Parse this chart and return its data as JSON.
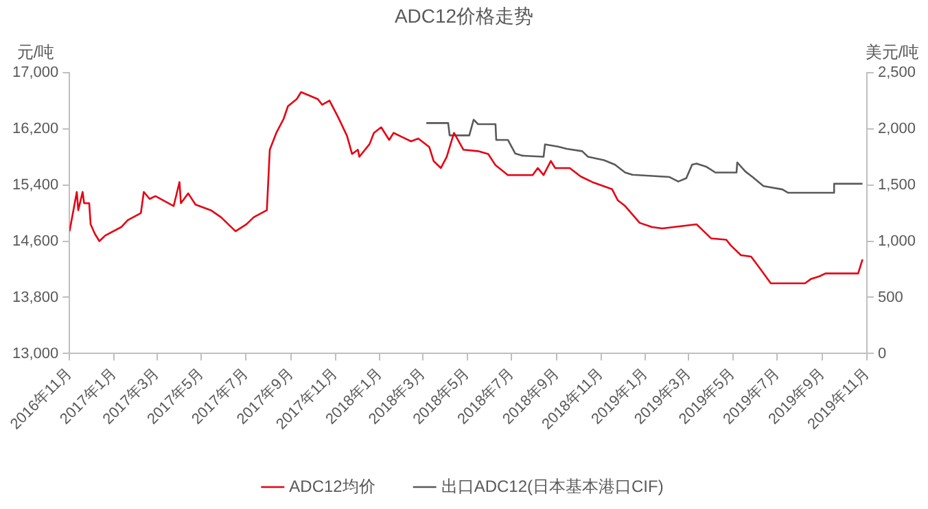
{
  "chart_data": {
    "type": "line",
    "title": "ADC12价格走势",
    "ylabel": "元/吨",
    "y2label": "美元/吨",
    "legend": "bottom",
    "grid": false,
    "xlim": [
      "2016-11-01",
      "2019-11-01"
    ],
    "xticks": [
      {
        "value": "2016-11",
        "label": "2016年11月"
      },
      {
        "value": "2017-01",
        "label": "2017年1月"
      },
      {
        "value": "2017-03",
        "label": "2017年3月"
      },
      {
        "value": "2017-05",
        "label": "2017年5月"
      },
      {
        "value": "2017-07",
        "label": "2017年7月"
      },
      {
        "value": "2017-09",
        "label": "2017年9月"
      },
      {
        "value": "2017-11",
        "label": "2017年11月"
      },
      {
        "value": "2018-01",
        "label": "2018年1月"
      },
      {
        "value": "2018-03",
        "label": "2018年3月"
      },
      {
        "value": "2018-05",
        "label": "2018年5月"
      },
      {
        "value": "2018-07",
        "label": "2018年7月"
      },
      {
        "value": "2018-09",
        "label": "2018年9月"
      },
      {
        "value": "2018-11",
        "label": "2018年11月"
      },
      {
        "value": "2019-01",
        "label": "2019年1月"
      },
      {
        "value": "2019-03",
        "label": "2019年3月"
      },
      {
        "value": "2019-05",
        "label": "2019年5月"
      },
      {
        "value": "2019-07",
        "label": "2019年7月"
      },
      {
        "value": "2019-09",
        "label": "2019年9月"
      },
      {
        "value": "2019-11",
        "label": "2019年11月"
      }
    ],
    "ylim": [
      13000,
      17000
    ],
    "yticks": [
      {
        "value": 13000,
        "label": "13,000"
      },
      {
        "value": 13800,
        "label": "13,800"
      },
      {
        "value": 14600,
        "label": "14,600"
      },
      {
        "value": 15400,
        "label": "15,400"
      },
      {
        "value": 16200,
        "label": "16,200"
      },
      {
        "value": 17000,
        "label": "17,000"
      }
    ],
    "y2lim": [
      0,
      2500
    ],
    "y2ticks": [
      0,
      500,
      {
        "value": 1000,
        "label": "1,000"
      },
      {
        "value": 1500,
        "label": "1,500"
      },
      {
        "value": 2000,
        "label": "2,000"
      },
      {
        "value": 2500,
        "label": "2,500"
      }
    ],
    "series": [
      {
        "name": "ADC12均价",
        "color": "#e60012",
        "x": [
          "2016-11-01",
          "2016-11-11",
          "2016-11-13",
          "2016-11-19",
          "2016-11-21",
          "2016-11-28",
          "2016-11-30",
          "2016-12-06",
          "2016-12-12",
          "2016-12-20",
          "2017-01-11",
          "2017-01-20",
          "2017-02-07",
          "2017-02-11",
          "2017-02-19",
          "2017-02-27",
          "2017-03-24",
          "2017-04-01",
          "2017-04-03",
          "2017-04-13",
          "2017-04-23",
          "2017-05-14",
          "2017-05-28",
          "2017-06-17",
          "2017-07-02",
          "2017-07-12",
          "2017-07-30",
          "2017-08-03",
          "2017-08-12",
          "2017-08-22",
          "2017-08-28",
          "2017-09-09",
          "2017-09-15",
          "2017-10-08",
          "2017-10-14",
          "2017-10-24",
          "2017-11-05",
          "2017-11-17",
          "2017-11-24",
          "2017-12-02",
          "2017-12-04",
          "2017-12-18",
          "2017-12-24",
          "2018-01-03",
          "2018-01-14",
          "2018-01-20",
          "2018-02-01",
          "2018-02-13",
          "2018-02-23",
          "2018-03-10",
          "2018-03-16",
          "2018-03-26",
          "2018-04-03",
          "2018-04-13",
          "2018-04-26",
          "2018-05-16",
          "2018-05-30",
          "2018-06-09",
          "2018-06-26",
          "2018-07-30",
          "2018-08-06",
          "2018-08-14",
          "2018-08-24",
          "2018-08-30",
          "2018-09-19",
          "2018-10-04",
          "2018-10-20",
          "2018-11-16",
          "2018-11-24",
          "2018-12-04",
          "2018-12-14",
          "2018-12-24",
          "2019-01-10",
          "2019-01-24",
          "2019-03-12",
          "2019-03-22",
          "2019-04-01",
          "2019-04-22",
          "2019-04-28",
          "2019-05-12",
          "2019-05-26",
          "2019-06-08",
          "2019-06-22",
          "2019-08-08",
          "2019-08-16",
          "2019-08-28",
          "2019-09-05",
          "2019-10-20",
          "2019-10-26"
        ],
        "values": [
          14740,
          15300,
          15040,
          15300,
          15140,
          15140,
          14840,
          14700,
          14600,
          14680,
          14800,
          14900,
          15000,
          15300,
          15200,
          15240,
          15100,
          15440,
          15140,
          15280,
          15120,
          15040,
          14940,
          14740,
          14840,
          14940,
          15040,
          15900,
          16140,
          16340,
          16520,
          16620,
          16720,
          16620,
          16540,
          16600,
          16360,
          16100,
          15840,
          15900,
          15800,
          15980,
          16140,
          16220,
          16040,
          16140,
          16080,
          16020,
          16060,
          15940,
          15740,
          15640,
          15800,
          16140,
          15900,
          15880,
          15840,
          15680,
          15540,
          15540,
          15640,
          15540,
          15740,
          15640,
          15640,
          15520,
          15440,
          15340,
          15180,
          15100,
          14980,
          14860,
          14800,
          14780,
          14840,
          14740,
          14640,
          14620,
          14540,
          14400,
          14380,
          14200,
          14000,
          14000,
          14060,
          14100,
          14140,
          14140,
          14340
        ]
      },
      {
        "name": "出口ADC12(日本基本港口CIF)",
        "color": "#595959",
        "axis": "y2",
        "x": [
          "2018-03-06",
          "2018-04-05",
          "2018-04-07",
          "2018-05-04",
          "2018-05-10",
          "2018-05-16",
          "2018-06-09",
          "2018-06-10",
          "2018-06-26",
          "2018-07-06",
          "2018-07-16",
          "2018-08-14",
          "2018-08-16",
          "2018-09-03",
          "2018-09-15",
          "2018-10-06",
          "2018-10-14",
          "2018-11-05",
          "2018-11-20",
          "2018-12-04",
          "2018-12-14",
          "2019-02-03",
          "2019-02-15",
          "2019-02-26",
          "2019-03-06",
          "2019-03-12",
          "2019-03-26",
          "2019-04-07",
          "2019-05-06",
          "2019-05-07",
          "2019-05-18",
          "2019-05-28",
          "2019-06-12",
          "2019-07-08",
          "2019-07-16",
          "2019-09-16",
          "2019-09-17",
          "2019-10-26"
        ],
        "values": [
          2050,
          2050,
          1940,
          1940,
          2080,
          2040,
          2040,
          1900,
          1900,
          1780,
          1760,
          1750,
          1860,
          1840,
          1820,
          1800,
          1750,
          1720,
          1680,
          1610,
          1590,
          1570,
          1530,
          1560,
          1680,
          1690,
          1660,
          1610,
          1610,
          1700,
          1620,
          1570,
          1490,
          1460,
          1430,
          1430,
          1510,
          1510
        ]
      }
    ]
  }
}
